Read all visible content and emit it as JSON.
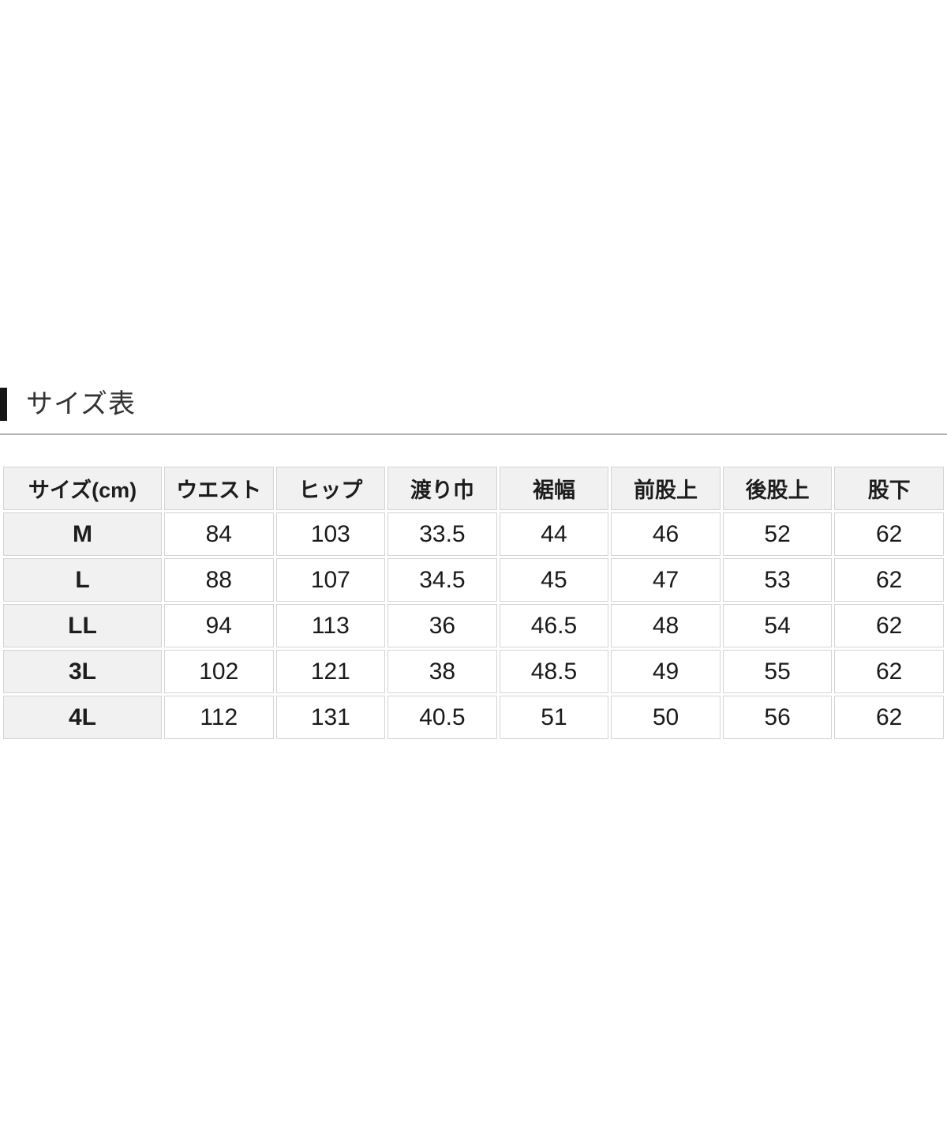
{
  "section": {
    "title": "サイズ表"
  },
  "size_table": {
    "columns": [
      "サイズ(cm)",
      "ウエスト",
      "ヒップ",
      "渡り巾",
      "裾幅",
      "前股上",
      "後股上",
      "股下"
    ],
    "rows": [
      {
        "size": "M",
        "values": [
          "84",
          "103",
          "33.5",
          "44",
          "46",
          "52",
          "62"
        ]
      },
      {
        "size": "L",
        "values": [
          "88",
          "107",
          "34.5",
          "45",
          "47",
          "53",
          "62"
        ]
      },
      {
        "size": "LL",
        "values": [
          "94",
          "113",
          "36",
          "46.5",
          "48",
          "54",
          "62"
        ]
      },
      {
        "size": "3L",
        "values": [
          "102",
          "121",
          "38",
          "48.5",
          "49",
          "55",
          "62"
        ]
      },
      {
        "size": "4L",
        "values": [
          "112",
          "131",
          "40.5",
          "51",
          "50",
          "56",
          "62"
        ]
      }
    ]
  },
  "colors": {
    "header_cell_bg": "#f2f1f2",
    "cell_border": "#d5d4d5",
    "accent_bar": "#161616",
    "divider_rule": "#b1b1b1",
    "text": "#1d1d1d"
  }
}
